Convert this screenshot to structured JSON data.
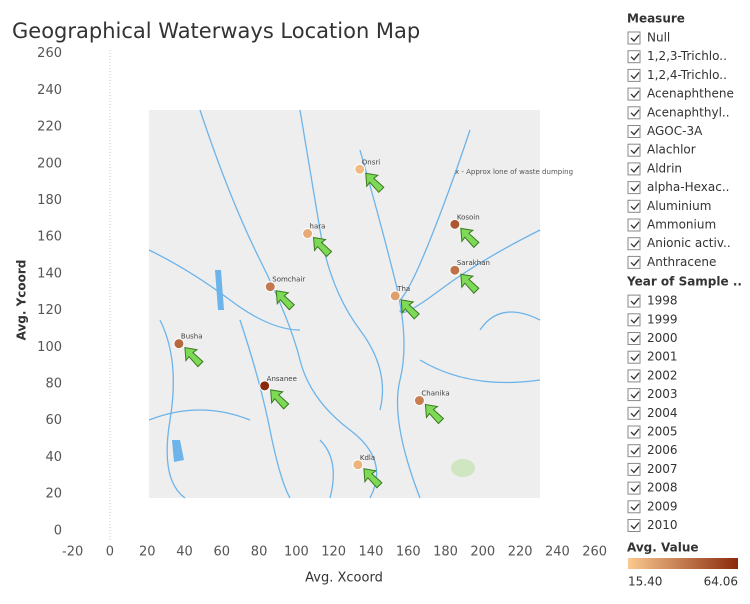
{
  "chart_data": {
    "type": "scatter",
    "title": "Geographical Waterways Location Map",
    "x_label": "Avg. Xcoord",
    "y_label": "Avg. Ycoord",
    "xlim": [
      -30,
      265
    ],
    "ylim": [
      -5,
      262
    ],
    "xticks": [
      -20,
      0,
      20,
      40,
      60,
      80,
      100,
      120,
      140,
      160,
      180,
      200,
      220,
      240,
      260
    ],
    "yticks": [
      0,
      20,
      40,
      60,
      80,
      100,
      120,
      140,
      160,
      180,
      200,
      220,
      240,
      260
    ],
    "x": [
      134,
      106,
      185,
      185,
      86,
      153,
      37,
      83,
      166,
      133
    ],
    "y": [
      197,
      162,
      167,
      142,
      133,
      128,
      102,
      79,
      71,
      36
    ],
    "color_values": [
      20,
      25,
      50,
      42,
      40,
      28,
      45,
      64,
      38,
      22
    ],
    "point_labels": [
      "Onsri",
      "hara",
      "Kosoin",
      "Sarakhan",
      "Somchair",
      "Tha",
      "Busha",
      "Ansanee",
      "Chanika",
      "Kdla"
    ],
    "map_annotation": "x - Approx lone of waste dumping",
    "color_legend": {
      "title": "Avg. Value",
      "low_color": "#fbc98f",
      "high_color": "#8a2a0c",
      "range": [
        {
          "value": 15.4,
          "label": "15.40"
        },
        {
          "value": 64.06,
          "label": "64.06"
        }
      ]
    },
    "filters": [
      {
        "title": "Measure",
        "items": [
          "Null",
          "1,2,3-Trichlo..",
          "1,2,4-Trichlo..",
          "Acenaphthene",
          "Acenaphthyl..",
          "AGOC-3A",
          "Alachlor",
          "Aldrin",
          "alpha-Hexac..",
          "Aluminium",
          "Ammonium",
          "Anionic activ..",
          "Anthracene"
        ]
      },
      {
        "title": "Year of Sample ..",
        "items": [
          "1998",
          "1999",
          "2000",
          "2001",
          "2002",
          "2003",
          "2004",
          "2005",
          "2006",
          "2007",
          "2008",
          "2009",
          "2010"
        ]
      }
    ]
  }
}
